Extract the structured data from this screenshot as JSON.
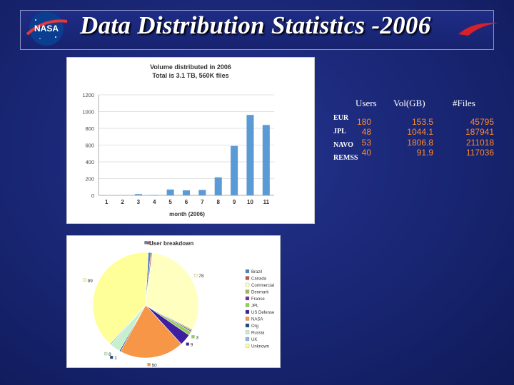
{
  "slide": {
    "title": "Data Distribution Statistics -2006"
  },
  "logo": {
    "text": "NASA"
  },
  "table": {
    "headers": [
      "Users",
      "Vol(GB)",
      "#Files"
    ],
    "rows": [
      {
        "label": "EUR",
        "users": "180",
        "vol": "153.5",
        "files": "45795"
      },
      {
        "label": "JPL",
        "users": "48",
        "vol": "1044.1",
        "files": "187941"
      },
      {
        "label": "NAVO",
        "users": "53",
        "vol": "1806.8",
        "files": "211018"
      },
      {
        "label": "REMSS",
        "users": "40",
        "vol": "91.9",
        "files": "117036"
      }
    ]
  },
  "colors": {
    "bar": "#5b9bd5",
    "table_value": "#ff8a2a"
  },
  "chart_data": [
    {
      "type": "bar",
      "title": "Volume distributed in 2006",
      "subtitle": "Total is 3.1 TB, 560K files",
      "xlabel": "month (2006)",
      "ylabel": "",
      "categories": [
        "1",
        "2",
        "3",
        "4",
        "5",
        "6",
        "7",
        "8",
        "9",
        "10",
        "11"
      ],
      "values": [
        0,
        0,
        15,
        5,
        70,
        60,
        65,
        215,
        590,
        960,
        840
      ],
      "yticks": [
        0,
        200,
        400,
        600,
        800,
        1000,
        1200
      ],
      "ylim": [
        0,
        1200
      ],
      "grid": true,
      "legend": "none"
    },
    {
      "type": "pie",
      "title": "User breakdown",
      "legend": "right",
      "slices": [
        {
          "name": "Brazil",
          "value": 2,
          "label": "2",
          "color": "#4f81bd"
        },
        {
          "name": "Canada",
          "value": 1,
          "label": "1",
          "color": "#c0504d"
        },
        {
          "name": "Commercial",
          "value": 78,
          "label": "78",
          "color": "#ffffc0"
        },
        {
          "name": "Denmark",
          "value": 1,
          "label": "",
          "color": "#9bbb59"
        },
        {
          "name": "France",
          "value": 1,
          "label": "",
          "color": "#7030a0"
        },
        {
          "name": "JPL",
          "value": 3,
          "label": "3",
          "color": "#92d050"
        },
        {
          "name": "US Defense",
          "value": 9,
          "label": "9",
          "color": "#3d1fa0"
        },
        {
          "name": "NASA",
          "value": 50,
          "label": "50",
          "color": "#f79646"
        },
        {
          "name": "Org",
          "value": 1,
          "label": "1",
          "color": "#1f497d"
        },
        {
          "name": "Russia",
          "value": 8,
          "label": "8",
          "color": "#c6efce"
        },
        {
          "name": "UK",
          "value": 1,
          "label": "",
          "color": "#8db3e2"
        },
        {
          "name": "Unknown",
          "value": 99,
          "label": "99",
          "color": "#ffff99"
        }
      ]
    }
  ]
}
